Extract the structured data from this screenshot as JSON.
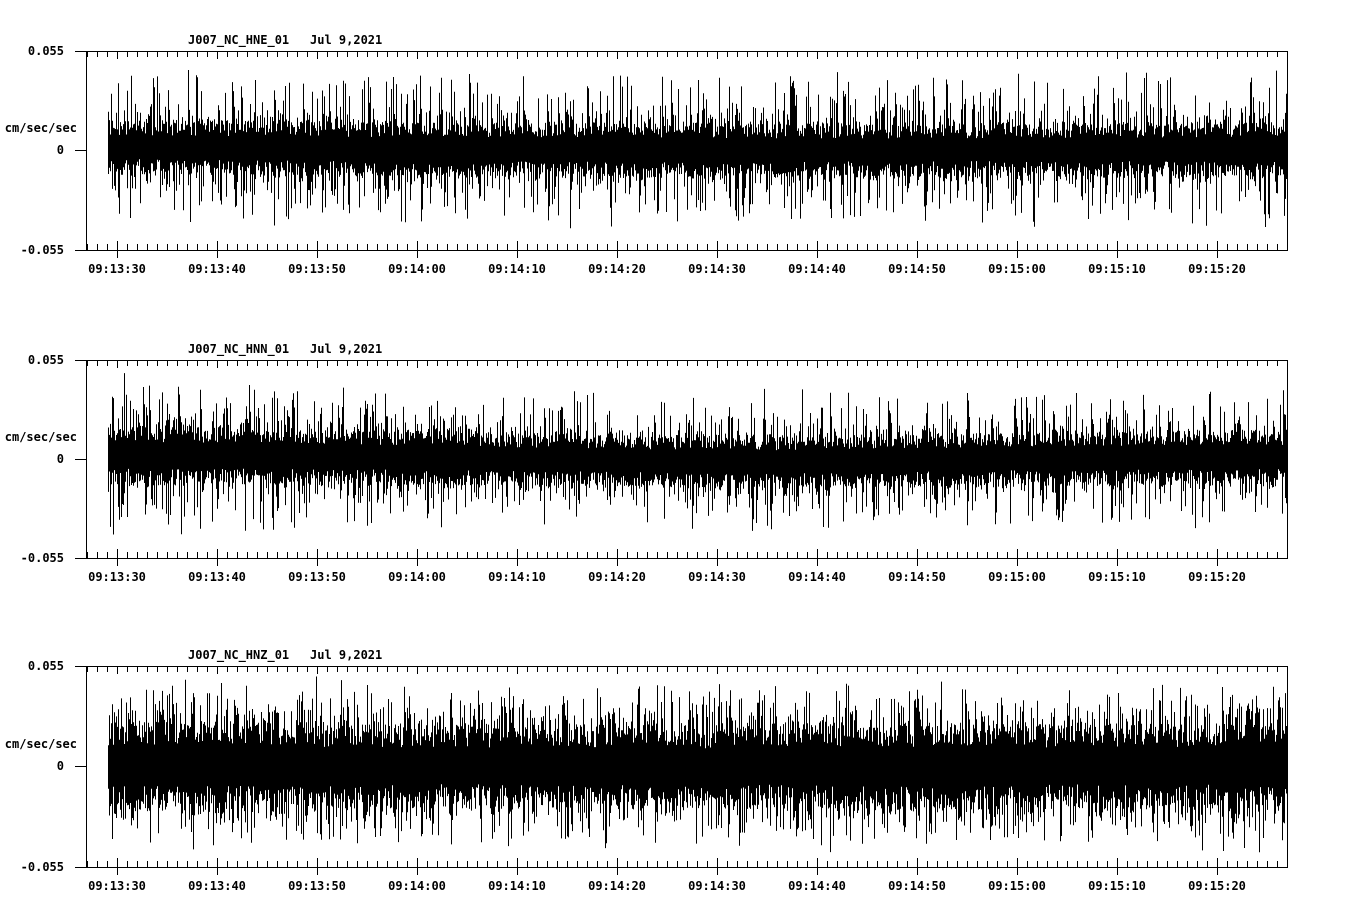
{
  "page": {
    "background": "#ffffff",
    "foreground": "#000000"
  },
  "y_axis": {
    "max_label": "0.055",
    "zero_label": "0",
    "min_label": "-0.055",
    "unit_label": "cm/sec/sec"
  },
  "time_axis": {
    "tick_labels": [
      "09:13:30",
      "09:13:40",
      "09:13:50",
      "09:14:00",
      "09:14:10",
      "09:14:20",
      "09:14:30",
      "09:14:40",
      "09:14:50",
      "09:15:00",
      "09:15:10",
      "09:15:20"
    ],
    "minor_tick_interval_seconds": 1,
    "major_tick_interval_seconds": 10
  },
  "chart_data": [
    {
      "type": "line",
      "subtype": "seismogram-waveform",
      "title": "J007_NC_HNE_01",
      "date_annotation": "Jul 9,2021",
      "ylabel": "cm/sec/sec",
      "ylim": [
        -0.055,
        0.055
      ],
      "yticks": [
        0.055,
        0,
        -0.055
      ],
      "x_tick_labels": [
        "09:13:30",
        "09:13:40",
        "09:13:50",
        "09:14:00",
        "09:14:10",
        "09:14:20",
        "09:14:30",
        "09:14:40",
        "09:14:50",
        "09:15:00",
        "09:15:10",
        "09:15:20"
      ],
      "x_minor_interval_seconds": 1,
      "x_major_interval_seconds": 10,
      "grid": false,
      "legend": false,
      "series": {
        "name": "HNE",
        "appearance": "continuous broadband ambient noise, no discrete event",
        "noise_model": {
          "seed": 20210709,
          "full_scale": 0.055,
          "core_amplitude": 0.0143,
          "peak_amplitude": 0.044,
          "spike_exponent": 4.5,
          "envelope": [
            [
              0,
              0.98
            ],
            [
              0.12,
              1.03
            ],
            [
              0.35,
              0.99
            ],
            [
              0.5,
              1.01
            ],
            [
              0.68,
              0.97
            ],
            [
              0.85,
              1.0
            ],
            [
              1,
              1.02
            ]
          ],
          "baseline_offset": [
            [
              0,
              0.03
            ],
            [
              0.2,
              0.01
            ],
            [
              0.6,
              0.0
            ],
            [
              1,
              0.01
            ]
          ]
        }
      }
    },
    {
      "type": "line",
      "subtype": "seismogram-waveform",
      "title": "J007_NC_HNN_01",
      "date_annotation": "Jul 9,2021",
      "ylabel": "cm/sec/sec",
      "ylim": [
        -0.055,
        0.055
      ],
      "yticks": [
        0.055,
        0,
        -0.055
      ],
      "x_tick_labels": [
        "09:13:30",
        "09:13:40",
        "09:13:50",
        "09:14:00",
        "09:14:10",
        "09:14:20",
        "09:14:30",
        "09:14:40",
        "09:14:50",
        "09:15:00",
        "09:15:10",
        "09:15:20"
      ],
      "x_minor_interval_seconds": 1,
      "x_major_interval_seconds": 10,
      "grid": false,
      "legend": false,
      "series": {
        "name": "HNN",
        "appearance": "continuous broadband ambient noise, slightly stronger at start, slight negative drift near 09:14:35",
        "noise_model": {
          "seed": 91421,
          "full_scale": 0.055,
          "core_amplitude": 0.0143,
          "peak_amplitude": 0.041,
          "spike_exponent": 4.5,
          "envelope": [
            [
              0,
              1.14
            ],
            [
              0.1,
              1.1
            ],
            [
              0.2,
              1.02
            ],
            [
              0.42,
              0.98
            ],
            [
              0.56,
              1.0
            ],
            [
              0.72,
              0.96
            ],
            [
              0.88,
              1.0
            ],
            [
              1,
              1.02
            ]
          ],
          "baseline_offset": [
            [
              0,
              0.04
            ],
            [
              0.3,
              0.01
            ],
            [
              0.55,
              -0.035
            ],
            [
              0.75,
              0.0
            ],
            [
              1,
              0.02
            ]
          ]
        }
      }
    },
    {
      "type": "line",
      "subtype": "seismogram-waveform",
      "title": "J007_NC_HNZ_01",
      "date_annotation": "Jul 9,2021",
      "ylabel": "cm/sec/sec",
      "ylim": [
        -0.055,
        0.055
      ],
      "yticks": [
        0.055,
        0,
        -0.055
      ],
      "x_tick_labels": [
        "09:13:30",
        "09:13:40",
        "09:13:50",
        "09:14:00",
        "09:14:10",
        "09:14:20",
        "09:14:30",
        "09:14:40",
        "09:14:50",
        "09:15:00",
        "09:15:10",
        "09:15:20"
      ],
      "x_minor_interval_seconds": 1,
      "x_major_interval_seconds": 10,
      "grid": false,
      "legend": false,
      "series": {
        "name": "HNZ",
        "appearance": "dense continuous broadband noise, larger amplitude than horizontals, frequent spikes",
        "noise_model": {
          "seed": 77007,
          "full_scale": 0.055,
          "core_amplitude": 0.022,
          "peak_amplitude": 0.047,
          "spike_exponent": 3.4,
          "envelope": [
            [
              0,
              1.04
            ],
            [
              0.08,
              1.08
            ],
            [
              0.25,
              1.0
            ],
            [
              0.5,
              0.98
            ],
            [
              0.63,
              1.0
            ],
            [
              0.73,
              1.06
            ],
            [
              0.82,
              1.0
            ],
            [
              1,
              1.0
            ]
          ],
          "baseline_offset": [
            [
              0,
              0.0
            ],
            [
              1,
              0.0
            ]
          ]
        }
      }
    }
  ]
}
